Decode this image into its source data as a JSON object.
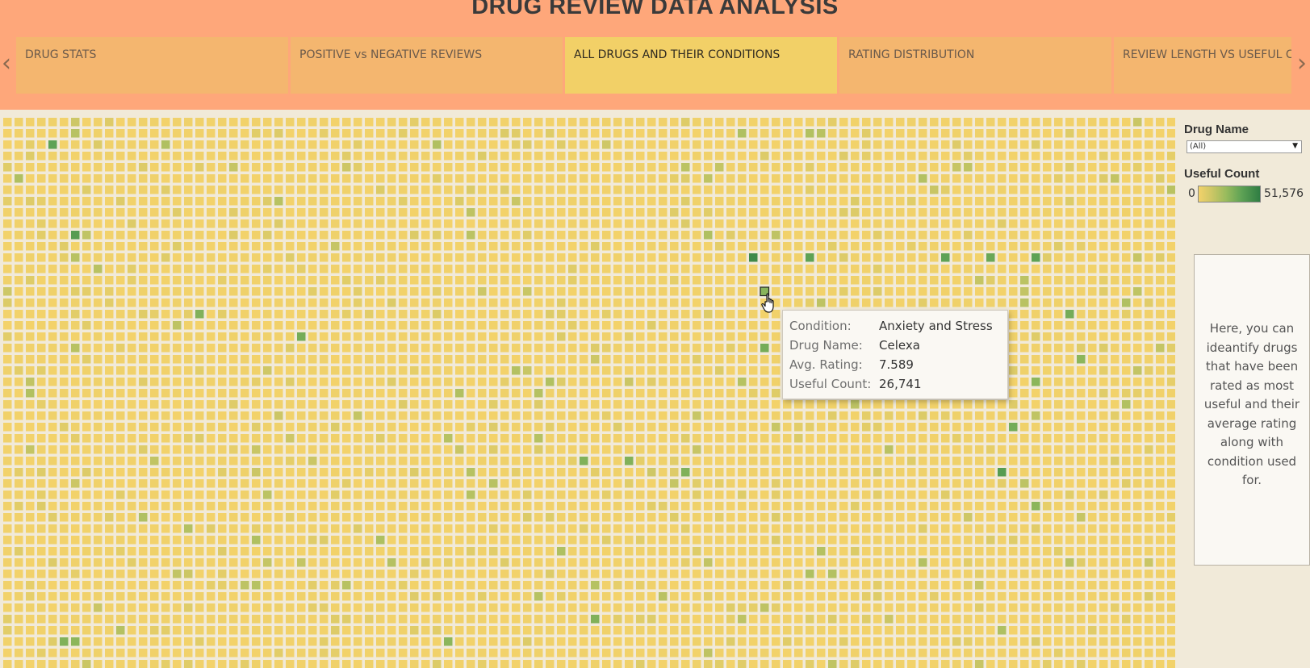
{
  "header": {
    "title": "DRUG REVIEW DATA ANALYSIS",
    "prev_arrow_icon": "chevron-left-icon",
    "next_arrow_icon": "chevron-right-icon"
  },
  "tabs": [
    {
      "label": "DRUG STATS",
      "active": false
    },
    {
      "label": "POSITIVE vs NEGATIVE REVIEWS",
      "active": false
    },
    {
      "label": "ALL DRUGS AND THEIR CONDITIONS",
      "active": true
    },
    {
      "label": "RATING DISTRIBUTION",
      "active": false
    },
    {
      "label": "REVIEW LENGTH VS USEFUL COUNT",
      "active": false
    }
  ],
  "filters": {
    "drug_name_label": "Drug Name",
    "drug_name_value": "(All)"
  },
  "legend": {
    "title": "Useful Count",
    "min": "0",
    "max": "51,576",
    "colors": {
      "low": "#f3d26a",
      "high": "#2f7d43"
    }
  },
  "note": {
    "text": "Here, you can ideantify drugs that have been rated as most useful and their average rating along with condition used for."
  },
  "tooltip": {
    "rows": [
      {
        "key": "Condition:",
        "value": "Anxiety and Stress"
      },
      {
        "key": "Drug Name:",
        "value": "Celexa"
      },
      {
        "key": "Avg. Rating:",
        "value": "7.589"
      },
      {
        "key": "Useful Count:",
        "value": "26,741"
      }
    ]
  },
  "chart_data": {
    "type": "heatmap",
    "xlabel": "",
    "ylabel": "",
    "color_measure": "Useful Count",
    "color_range": [
      0,
      51576
    ],
    "grid": {
      "columns": 104,
      "rows": 49
    },
    "highlighted_cells": [
      {
        "col": 4,
        "row": 2,
        "level": 0.7
      },
      {
        "col": 6,
        "row": 10,
        "level": 0.75
      },
      {
        "col": 66,
        "row": 12,
        "level": 0.9
      },
      {
        "col": 71,
        "row": 12,
        "level": 0.7
      },
      {
        "col": 83,
        "row": 12,
        "level": 0.7
      },
      {
        "col": 87,
        "row": 12,
        "level": 0.65
      },
      {
        "col": 91,
        "row": 12,
        "level": 0.7
      },
      {
        "col": 67,
        "row": 15,
        "level": 0.52,
        "hovered": true
      },
      {
        "col": 17,
        "row": 17,
        "level": 0.55
      },
      {
        "col": 94,
        "row": 17,
        "level": 0.6
      },
      {
        "col": 26,
        "row": 19,
        "level": 0.6
      },
      {
        "col": 67,
        "row": 20,
        "level": 0.6
      },
      {
        "col": 95,
        "row": 21,
        "level": 0.5
      },
      {
        "col": 91,
        "row": 23,
        "level": 0.5
      },
      {
        "col": 89,
        "row": 27,
        "level": 0.6
      },
      {
        "col": 51,
        "row": 30,
        "level": 0.55
      },
      {
        "col": 55,
        "row": 30,
        "level": 0.55
      },
      {
        "col": 60,
        "row": 31,
        "level": 0.55
      },
      {
        "col": 88,
        "row": 31,
        "level": 0.75
      },
      {
        "col": 91,
        "row": 34,
        "level": 0.5
      },
      {
        "col": 52,
        "row": 44,
        "level": 0.55
      },
      {
        "col": 5,
        "row": 46,
        "level": 0.55
      },
      {
        "col": 6,
        "row": 46,
        "level": 0.5
      },
      {
        "col": 39,
        "row": 46,
        "level": 0.5
      }
    ]
  }
}
